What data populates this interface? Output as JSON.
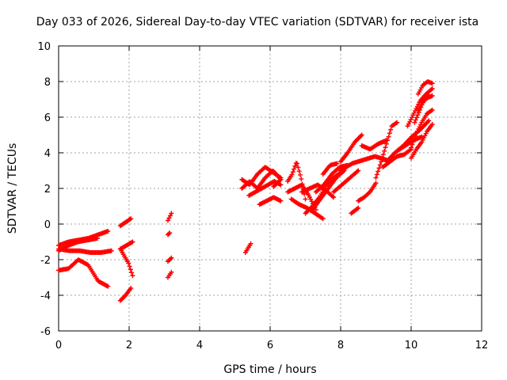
{
  "chart_data": {
    "type": "scatter",
    "title": "Day 033 of 2026, Sidereal Day-to-day VTEC variation (SDTVAR) for receiver ista",
    "xlabel": "GPS time / hours",
    "ylabel": "SDTVAR / TECUs",
    "xlim": [
      0,
      12
    ],
    "ylim": [
      -6,
      10
    ],
    "xticks": [
      "0",
      "2",
      "4",
      "6",
      "8",
      "10",
      "12"
    ],
    "yticks": [
      "-6",
      "-4",
      "-2",
      "0",
      "2",
      "4",
      "6",
      "8",
      "10"
    ],
    "grid": true,
    "marker": "plus",
    "color": "#ff0000",
    "segments": [
      {
        "x0": 0.0,
        "x1": 1.4,
        "y": [
          -1.2,
          -1.0,
          -0.9,
          -0.8,
          -0.6,
          -0.4
        ]
      },
      {
        "x0": 0.0,
        "x1": 1.1,
        "y": [
          -1.5,
          -1.2,
          -1.0,
          -0.9,
          -0.8
        ]
      },
      {
        "x0": 0.0,
        "x1": 1.5,
        "y": [
          -1.4,
          -1.5,
          -1.5,
          -1.6,
          -1.6,
          -1.5
        ]
      },
      {
        "x0": 0.0,
        "x1": 1.4,
        "y": [
          -2.6,
          -2.5,
          -2.0,
          -2.3,
          -3.2,
          -3.5
        ]
      },
      {
        "x0": 1.75,
        "x1": 2.05,
        "y": [
          -0.1,
          0.1,
          0.3
        ]
      },
      {
        "x0": 1.75,
        "x1": 2.1,
        "y": [
          -1.4,
          -1.2,
          -1.0
        ]
      },
      {
        "x0": 1.75,
        "x1": 2.1,
        "y": [
          -1.4,
          -1.8,
          -2.2,
          -2.9
        ]
      },
      {
        "x0": 1.75,
        "x1": 2.05,
        "y": [
          -4.3,
          -4.0,
          -3.6
        ]
      },
      {
        "x0": 3.1,
        "x1": 3.2,
        "y": [
          0.2,
          0.6
        ]
      },
      {
        "x0": 3.1,
        "x1": 3.15,
        "y": [
          -0.6,
          -0.5
        ]
      },
      {
        "x0": 3.1,
        "x1": 3.2,
        "y": [
          -2.1,
          -1.9
        ]
      },
      {
        "x0": 3.1,
        "x1": 3.2,
        "y": [
          -3.0,
          -2.7
        ]
      },
      {
        "x0": 5.3,
        "x1": 5.45,
        "y": [
          -1.6,
          -1.1
        ]
      },
      {
        "x0": 5.2,
        "x1": 6.3,
        "y": [
          2.5,
          2.2,
          2.8,
          3.2,
          2.9,
          2.6
        ]
      },
      {
        "x0": 5.2,
        "x1": 6.3,
        "y": [
          2.0,
          2.4,
          2.0,
          2.6,
          3.0,
          2.5
        ]
      },
      {
        "x0": 5.4,
        "x1": 6.3,
        "y": [
          1.6,
          1.8,
          2.0,
          2.2,
          2.4,
          2.2
        ]
      },
      {
        "x0": 5.7,
        "x1": 6.3,
        "y": [
          1.1,
          1.3,
          1.5,
          1.3
        ]
      },
      {
        "x0": 6.1,
        "x1": 6.3,
        "y": [
          2.1,
          2.5
        ]
      },
      {
        "x0": 6.5,
        "x1": 7.0,
        "y": [
          2.4,
          2.8,
          3.5,
          2.6,
          1.4
        ]
      },
      {
        "x0": 6.5,
        "x1": 7.3,
        "y": [
          1.8,
          2.0,
          2.2,
          1.6,
          0.8
        ]
      },
      {
        "x0": 6.6,
        "x1": 7.5,
        "y": [
          1.4,
          1.1,
          0.9,
          0.6,
          0.3
        ]
      },
      {
        "x0": 6.9,
        "x1": 7.8,
        "y": [
          1.8,
          2.0,
          2.2,
          1.9,
          1.5
        ]
      },
      {
        "x0": 7.0,
        "x1": 8.0,
        "y": [
          0.6,
          1.0,
          1.5,
          2.2,
          2.6,
          2.9
        ]
      },
      {
        "x0": 7.2,
        "x1": 8.1,
        "y": [
          0.8,
          1.4,
          2.0,
          2.6,
          3.0
        ]
      },
      {
        "x0": 7.3,
        "x1": 8.2,
        "y": [
          1.8,
          2.2,
          2.8,
          3.2,
          3.3
        ]
      },
      {
        "x0": 7.5,
        "x1": 7.9,
        "y": [
          2.8,
          3.3,
          3.4
        ]
      },
      {
        "x0": 7.8,
        "x1": 8.5,
        "y": [
          1.8,
          2.2,
          2.6,
          3.0
        ]
      },
      {
        "x0": 8.0,
        "x1": 9.3,
        "y": [
          3.0,
          3.4,
          3.6,
          3.8,
          3.6
        ]
      },
      {
        "x0": 8.0,
        "x1": 8.6,
        "y": [
          3.5,
          4.0,
          4.6,
          5.0
        ]
      },
      {
        "x0": 8.3,
        "x1": 8.5,
        "y": [
          0.6,
          0.9
        ]
      },
      {
        "x0": 8.5,
        "x1": 9.0,
        "y": [
          1.3,
          1.5,
          1.8,
          2.3
        ]
      },
      {
        "x0": 8.6,
        "x1": 9.3,
        "y": [
          4.4,
          4.2,
          4.5,
          4.7
        ]
      },
      {
        "x0": 9.0,
        "x1": 9.6,
        "y": [
          2.6,
          3.5,
          4.5,
          5.5,
          5.7
        ]
      },
      {
        "x0": 9.2,
        "x1": 10.0,
        "y": [
          3.2,
          3.5,
          3.8,
          3.9,
          4.2
        ]
      },
      {
        "x0": 9.3,
        "x1": 10.5,
        "y": [
          3.5,
          4.0,
          4.4,
          4.9,
          5.3,
          5.8
        ]
      },
      {
        "x0": 9.6,
        "x1": 10.3,
        "y": [
          4.1,
          4.4,
          4.7,
          4.9
        ]
      },
      {
        "x0": 9.9,
        "x1": 10.6,
        "y": [
          5.5,
          6.2,
          6.9,
          7.3,
          7.6
        ]
      },
      {
        "x0": 10.0,
        "x1": 10.6,
        "y": [
          4.3,
          5.1,
          5.7,
          6.2,
          6.4
        ]
      },
      {
        "x0": 10.0,
        "x1": 10.6,
        "y": [
          3.7,
          4.2,
          4.6,
          5.2,
          5.6
        ]
      },
      {
        "x0": 10.1,
        "x1": 10.6,
        "y": [
          5.7,
          6.3,
          6.9,
          7.1,
          7.2
        ]
      },
      {
        "x0": 10.2,
        "x1": 10.6,
        "y": [
          7.3,
          7.8,
          8.0,
          7.9
        ]
      },
      {
        "x0": 10.2,
        "x1": 10.5,
        "y": [
          6.4,
          6.9,
          7.2
        ]
      }
    ]
  }
}
